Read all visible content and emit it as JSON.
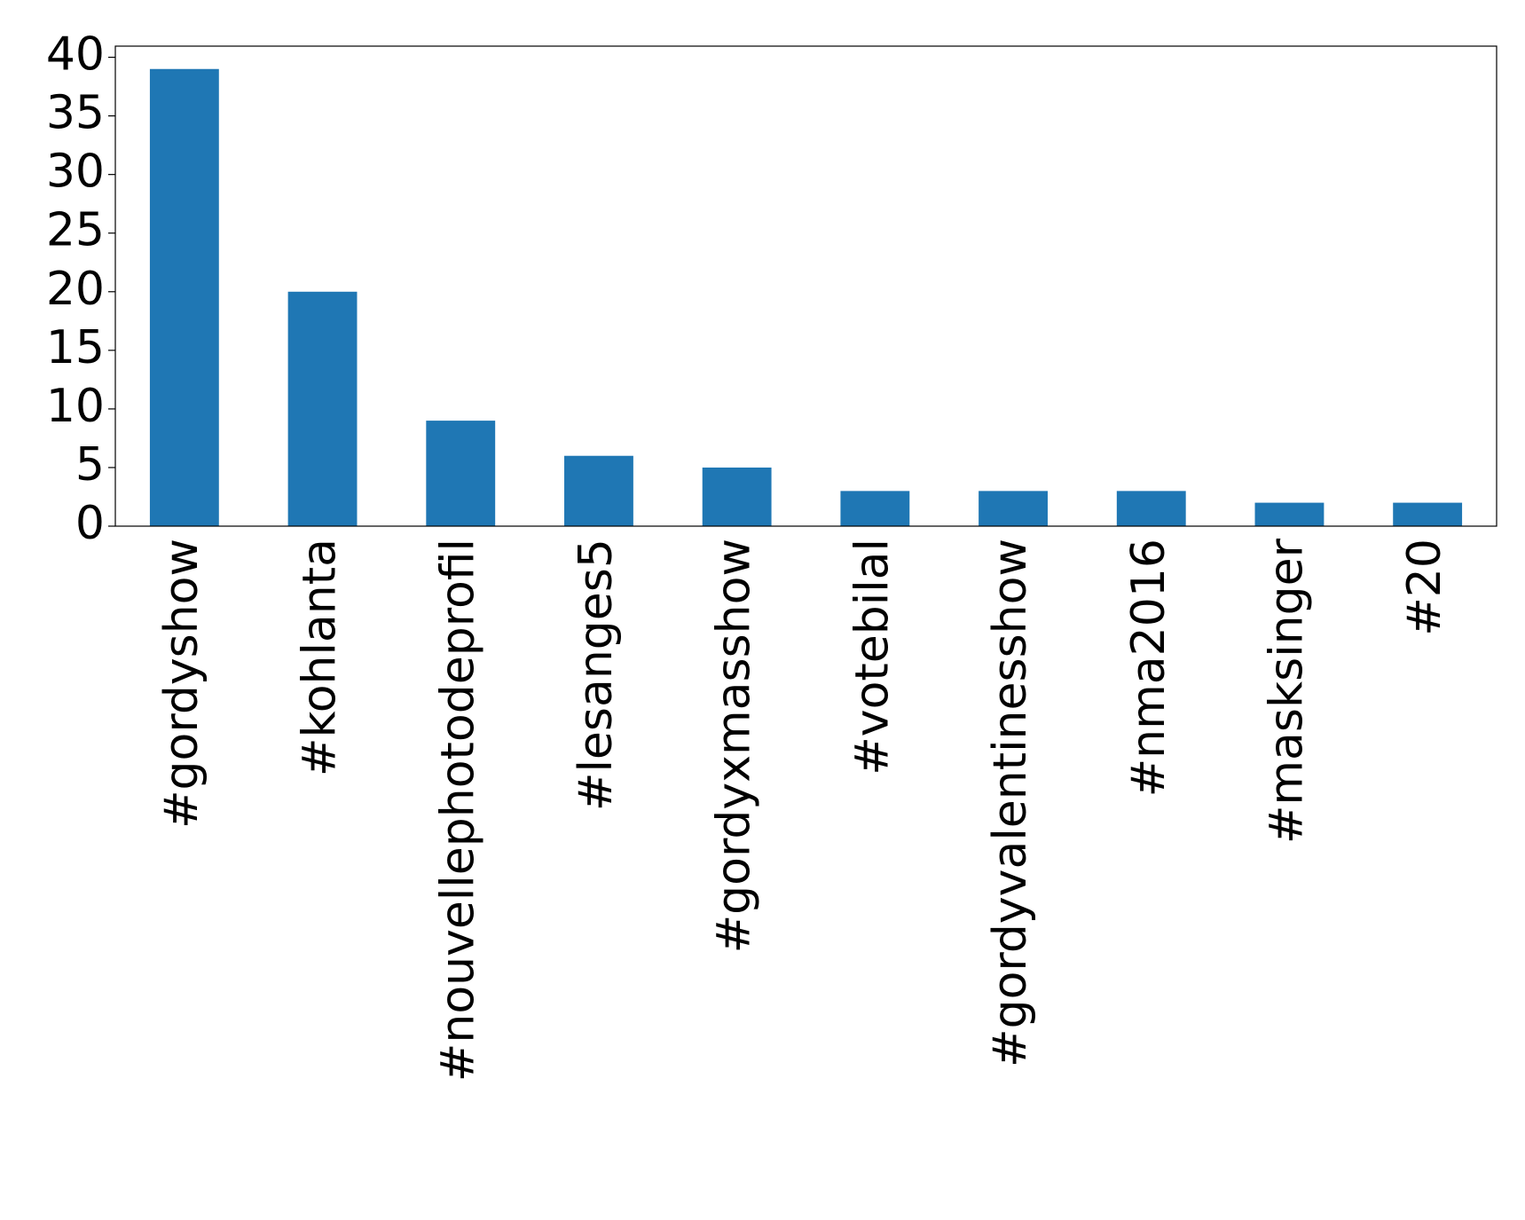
{
  "chart_data": {
    "type": "bar",
    "categories": [
      "#gordyshow",
      "#kohlanta",
      "#nouvellephotodeprofil",
      "#lesanges5",
      "#gordyxmasshow",
      "#votebilal",
      "#gordyvalentinesshow",
      "#nma2016",
      "#masksinger",
      "#20"
    ],
    "values": [
      39,
      20,
      9,
      6,
      5,
      3,
      3,
      3,
      2,
      2
    ],
    "color": "#1f77b4",
    "ylim": [
      0,
      40.95
    ],
    "yticks": [
      0,
      5,
      10,
      15,
      20,
      25,
      30,
      35,
      40
    ],
    "grid": false
  }
}
